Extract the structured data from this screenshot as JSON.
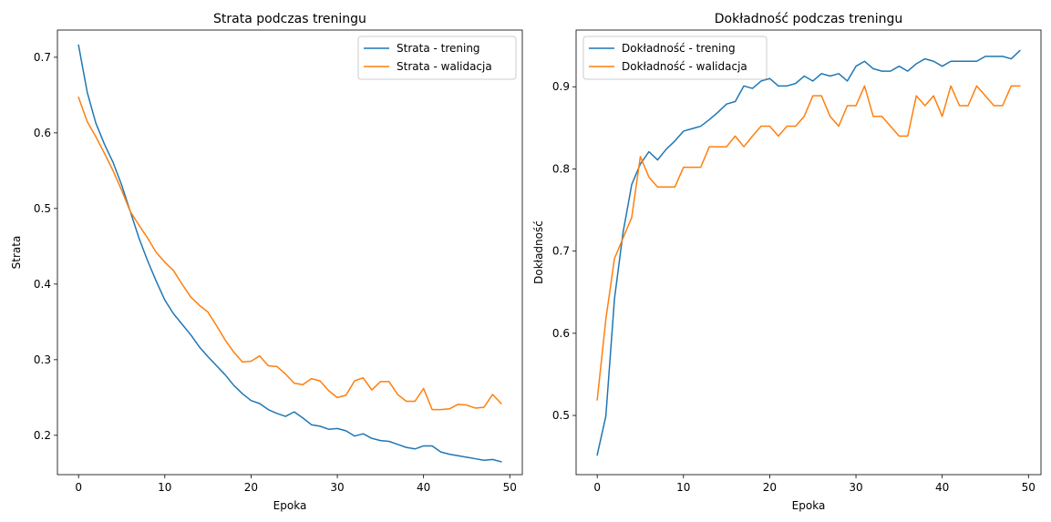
{
  "chart_data": [
    {
      "type": "line",
      "title": "Strata podczas treningu",
      "xlabel": "Epoka",
      "ylabel": "Strata",
      "xlim": [
        -2.45,
        51.45
      ],
      "ylim": [
        0.148,
        0.736
      ],
      "xticks": [
        0,
        10,
        20,
        30,
        40,
        50
      ],
      "yticks": [
        0.2,
        0.3,
        0.4,
        0.5,
        0.6,
        0.7
      ],
      "ytick_labels": [
        "0.2",
        "0.3",
        "0.4",
        "0.5",
        "0.6",
        "0.7"
      ],
      "grid": false,
      "legend": "upper-right",
      "series": [
        {
          "name": "Strata - trening",
          "color": "#1f77b4",
          "values": [
            0.716,
            0.654,
            0.613,
            0.585,
            0.561,
            0.531,
            0.496,
            0.461,
            0.431,
            0.404,
            0.379,
            0.361,
            0.347,
            0.333,
            0.317,
            0.304,
            0.292,
            0.28,
            0.266,
            0.255,
            0.246,
            0.242,
            0.234,
            0.229,
            0.225,
            0.231,
            0.223,
            0.214,
            0.212,
            0.208,
            0.209,
            0.206,
            0.199,
            0.202,
            0.196,
            0.193,
            0.192,
            0.188,
            0.184,
            0.182,
            0.186,
            0.186,
            0.178,
            0.175,
            0.173,
            0.171,
            0.169,
            0.167,
            0.168,
            0.165
          ]
        },
        {
          "name": "Strata - walidacja",
          "color": "#ff7f0e",
          "values": [
            0.647,
            0.615,
            0.595,
            0.573,
            0.55,
            0.524,
            0.496,
            0.478,
            0.461,
            0.442,
            0.429,
            0.418,
            0.4,
            0.383,
            0.372,
            0.363,
            0.345,
            0.326,
            0.31,
            0.297,
            0.298,
            0.305,
            0.292,
            0.291,
            0.281,
            0.269,
            0.267,
            0.275,
            0.272,
            0.259,
            0.25,
            0.253,
            0.272,
            0.276,
            0.26,
            0.271,
            0.271,
            0.254,
            0.245,
            0.245,
            0.262,
            0.234,
            0.234,
            0.235,
            0.241,
            0.24,
            0.236,
            0.237,
            0.254,
            0.242
          ]
        }
      ]
    },
    {
      "type": "line",
      "title": "Dokładność podczas treningu",
      "xlabel": "Epoka",
      "ylabel": "Dokładność",
      "xlim": [
        -2.45,
        51.45
      ],
      "ylim": [
        0.428,
        0.969
      ],
      "xticks": [
        0,
        10,
        20,
        30,
        40,
        50
      ],
      "yticks": [
        0.5,
        0.6,
        0.7,
        0.8,
        0.9
      ],
      "ytick_labels": [
        "0.5",
        "0.6",
        "0.7",
        "0.8",
        "0.9"
      ],
      "grid": false,
      "legend": "upper-left",
      "series": [
        {
          "name": "Dokładność - trening",
          "color": "#1f77b4",
          "values": [
            0.452,
            0.499,
            0.642,
            0.723,
            0.781,
            0.806,
            0.821,
            0.811,
            0.824,
            0.834,
            0.846,
            0.849,
            0.852,
            0.86,
            0.869,
            0.879,
            0.882,
            0.901,
            0.898,
            0.907,
            0.91,
            0.901,
            0.901,
            0.904,
            0.913,
            0.907,
            0.916,
            0.913,
            0.916,
            0.907,
            0.925,
            0.931,
            0.922,
            0.919,
            0.919,
            0.925,
            0.919,
            0.928,
            0.934,
            0.931,
            0.925,
            0.931,
            0.931,
            0.931,
            0.931,
            0.937,
            0.937,
            0.937,
            0.934,
            0.944
          ]
        },
        {
          "name": "Dokładność - walidacja",
          "color": "#ff7f0e",
          "values": [
            0.519,
            0.617,
            0.691,
            0.716,
            0.741,
            0.815,
            0.79,
            0.778,
            0.778,
            0.778,
            0.802,
            0.802,
            0.802,
            0.827,
            0.827,
            0.827,
            0.84,
            0.827,
            0.84,
            0.852,
            0.852,
            0.84,
            0.852,
            0.852,
            0.864,
            0.889,
            0.889,
            0.864,
            0.852,
            0.877,
            0.877,
            0.901,
            0.864,
            0.864,
            0.852,
            0.84,
            0.84,
            0.889,
            0.877,
            0.889,
            0.864,
            0.901,
            0.877,
            0.877,
            0.901,
            0.889,
            0.877,
            0.877,
            0.901,
            0.901
          ]
        }
      ]
    }
  ]
}
